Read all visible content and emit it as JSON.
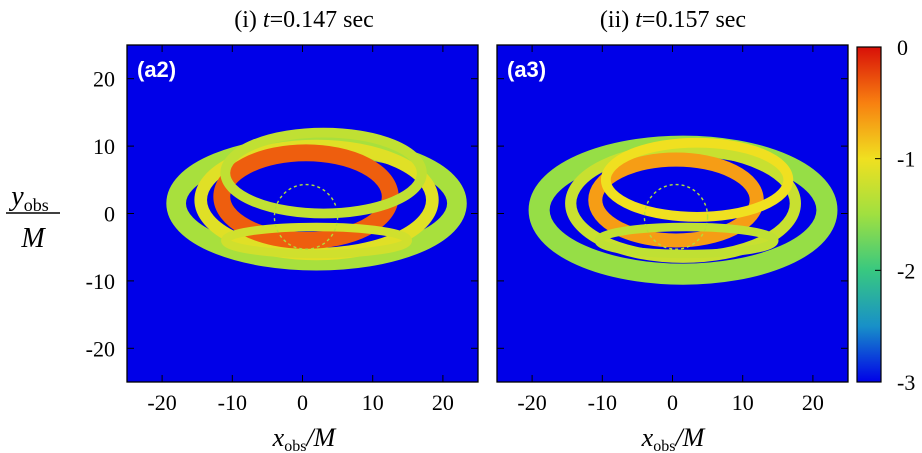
{
  "chart_data": [
    {
      "type": "heatmap",
      "title_prefix": "(i) ",
      "title_var": "t",
      "title_value": "=0.147 sec",
      "panel_label": "(a2)",
      "xlabel_var": "x",
      "xlabel_sub": "obs",
      "xlabel_suffix": "/M",
      "ylabel_var": "y",
      "ylabel_sub": "obs",
      "ylabel_den": "M",
      "xlim": [
        -25,
        25
      ],
      "ylim": [
        -25,
        25
      ],
      "xticks": [
        -20,
        -10,
        0,
        10,
        20
      ],
      "yticks": [
        -20,
        -10,
        0,
        10,
        20
      ],
      "background_value": -3,
      "rings": [
        {
          "cx": 2.0,
          "cy": 1.5,
          "rx": 20.0,
          "ry": 8.5,
          "w": 2.8,
          "value": -1.45
        },
        {
          "cx": 2.0,
          "cy": 2.0,
          "rx": 16.5,
          "ry": 8.0,
          "w": 1.8,
          "value": -1.1
        },
        {
          "cx": 0.5,
          "cy": 2.5,
          "rx": 12.0,
          "ry": 6.5,
          "w": 2.4,
          "value": -0.35
        },
        {
          "cx": 3.0,
          "cy": 6.0,
          "rx": 14.0,
          "ry": 6.0,
          "w": 1.4,
          "value": -1.3
        },
        {
          "cx": 2.0,
          "cy": -4.0,
          "rx": 13.0,
          "ry": 2.0,
          "w": 1.2,
          "value": -1.2
        }
      ]
    },
    {
      "type": "heatmap",
      "title_prefix": "(ii) ",
      "title_var": "t",
      "title_value": "=0.157 sec",
      "panel_label": "(a3)",
      "xlabel_var": "x",
      "xlabel_sub": "obs",
      "xlabel_suffix": "/M",
      "xlim": [
        -25,
        25
      ],
      "ylim": [
        -25,
        25
      ],
      "xticks": [
        -20,
        -10,
        0,
        10,
        20
      ],
      "yticks": [
        -20,
        -10,
        0,
        10,
        20
      ],
      "background_value": -3,
      "rings": [
        {
          "cx": 1.5,
          "cy": 0.5,
          "rx": 20.5,
          "ry": 9.5,
          "w": 3.0,
          "value": -1.55
        },
        {
          "cx": 1.5,
          "cy": 1.5,
          "rx": 16.0,
          "ry": 8.0,
          "w": 1.6,
          "value": -1.25
        },
        {
          "cx": 0.5,
          "cy": 2.0,
          "rx": 11.5,
          "ry": 6.0,
          "w": 2.0,
          "value": -0.65
        },
        {
          "cx": 3.5,
          "cy": 5.0,
          "rx": 13.0,
          "ry": 5.5,
          "w": 1.4,
          "value": -1.0
        },
        {
          "cx": 2.0,
          "cy": -4.0,
          "rx": 12.5,
          "ry": 2.0,
          "w": 1.2,
          "value": -1.3
        }
      ]
    }
  ],
  "colorbar": {
    "min": -3,
    "max": 0,
    "ticks": [
      "0",
      "-1",
      "-2",
      "-3"
    ],
    "colors": [
      "#d81008",
      "#f88010",
      "#f0e020",
      "#a0e040",
      "#38c880",
      "#1890c8",
      "#0000e8"
    ]
  }
}
